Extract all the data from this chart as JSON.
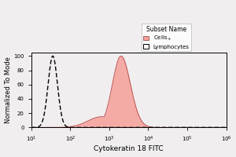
{
  "xlabel": "Cytokeratin 18 FITC",
  "ylabel": "Normalized To Mode",
  "legend_title": "Subset Name",
  "cell_label": "Cells₊",
  "lymph_label": "Lymphocytes",
  "cell_color": "#f5a09a",
  "cell_edge_color": "#c05050",
  "background_color": "#f0eeee",
  "ylim": [
    0,
    105
  ],
  "yticks": [
    0,
    20,
    40,
    60,
    80,
    100
  ],
  "xlim": [
    10,
    1000000
  ],
  "cell_peak_log": 3.3,
  "cell_sig_log": 0.22,
  "lymph_peak_log": 1.55,
  "lymph_sig_log": 0.12
}
